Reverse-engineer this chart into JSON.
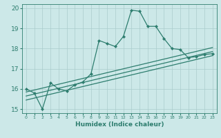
{
  "title": "",
  "xlabel": "Humidex (Indice chaleur)",
  "ylabel": "",
  "bg_color": "#cce8e8",
  "grid_color": "#aacccc",
  "line_color": "#2d7d6e",
  "xlim": [
    -0.5,
    23.5
  ],
  "ylim": [
    14.8,
    20.2
  ],
  "xticks": [
    0,
    1,
    2,
    3,
    4,
    5,
    6,
    7,
    8,
    9,
    10,
    11,
    12,
    13,
    14,
    15,
    16,
    17,
    18,
    19,
    20,
    21,
    22,
    23
  ],
  "yticks": [
    15,
    16,
    17,
    18,
    19,
    20
  ],
  "main_x": [
    0,
    1,
    2,
    3,
    4,
    5,
    6,
    7,
    8,
    9,
    10,
    11,
    12,
    13,
    14,
    15,
    16,
    17,
    18,
    19,
    20,
    21,
    22,
    23
  ],
  "main_y": [
    16.0,
    15.8,
    15.0,
    16.3,
    16.0,
    15.9,
    16.2,
    16.35,
    16.75,
    18.4,
    18.25,
    18.1,
    18.6,
    19.9,
    19.85,
    19.1,
    19.1,
    18.5,
    18.0,
    17.95,
    17.55,
    17.6,
    17.7,
    17.75
  ],
  "line2_x": [
    0,
    23
  ],
  "line2_y": [
    15.85,
    18.05
  ],
  "line3_x": [
    0,
    23
  ],
  "line3_y": [
    15.65,
    17.85
  ],
  "line4_x": [
    0,
    23
  ],
  "line4_y": [
    15.45,
    17.65
  ]
}
